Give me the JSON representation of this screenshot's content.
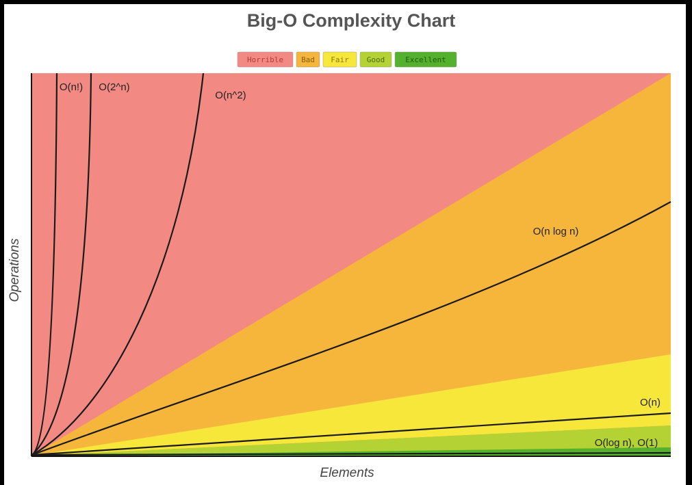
{
  "chart_data": {
    "type": "complexity",
    "title": "Big-O Complexity Chart",
    "legend": [
      {
        "name": "Horrible",
        "color": "#f28a83",
        "text": "#b03a3a"
      },
      {
        "name": "Bad",
        "color": "#f6b63c",
        "text": "#8a5a00"
      },
      {
        "name": "Fair",
        "color": "#f6e73a",
        "text": "#8a7a00"
      },
      {
        "name": "Good",
        "color": "#b4d233",
        "text": "#4a6a00"
      },
      {
        "name": "Excellent",
        "color": "#55b02e",
        "text": "#1f5a0a"
      }
    ],
    "x_label": "Elements",
    "y_label": "Operations",
    "curves": [
      "O(n!)",
      "O(2^n)",
      "O(n^2)",
      "O(n log n)",
      "O(n)",
      "O(log n), O(1)"
    ]
  }
}
